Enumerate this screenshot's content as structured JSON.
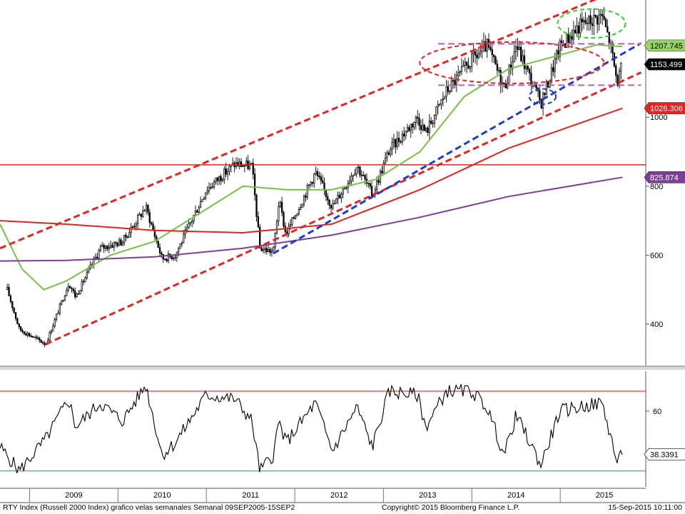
{
  "chart_data": [
    {
      "type": "candlestick",
      "frequency": "weekly",
      "ylim": [
        280,
        1340
      ],
      "x_range": [
        "2008-09-01",
        "2015-12-20"
      ],
      "y_ticks": [
        400,
        600,
        800,
        1000
      ],
      "y_tick_labels": [
        "400",
        "600",
        "800",
        "1000"
      ],
      "year_labels": [
        "2009",
        "2010",
        "2011",
        "2012",
        "2013",
        "2014",
        "2015"
      ],
      "price_path": [
        [
          "2008-10-01",
          500
        ],
        [
          "2008-11-20",
          385
        ],
        [
          "2009-03-09",
          342
        ],
        [
          "2009-06-12",
          520
        ],
        [
          "2009-07-10",
          480
        ],
        [
          "2009-10-20",
          620
        ],
        [
          "2010-01-20",
          640
        ],
        [
          "2010-04-26",
          740
        ],
        [
          "2010-07-02",
          590
        ],
        [
          "2010-08-25",
          600
        ],
        [
          "2010-12-31",
          790
        ],
        [
          "2011-04-29",
          865
        ],
        [
          "2011-07-08",
          858
        ],
        [
          "2011-08-10",
          620
        ],
        [
          "2011-10-04",
          610
        ],
        [
          "2011-10-28",
          760
        ],
        [
          "2011-11-25",
          660
        ],
        [
          "2012-03-26",
          840
        ],
        [
          "2012-06-04",
          740
        ],
        [
          "2012-09-14",
          860
        ],
        [
          "2012-11-16",
          775
        ],
        [
          "2013-01-25",
          905
        ],
        [
          "2013-05-22",
          1000
        ],
        [
          "2013-06-24",
          955
        ],
        [
          "2013-09-18",
          1075
        ],
        [
          "2013-12-31",
          1165
        ],
        [
          "2014-03-04",
          1208
        ],
        [
          "2014-05-15",
          1085
        ],
        [
          "2014-07-03",
          1210
        ],
        [
          "2014-10-13",
          1040
        ],
        [
          "2014-12-31",
          1205
        ],
        [
          "2015-03-20",
          1265
        ],
        [
          "2015-06-23",
          1296
        ],
        [
          "2015-07-27",
          1210
        ],
        [
          "2015-08-24",
          1100
        ],
        [
          "2015-09-15",
          1153
        ]
      ],
      "moving_averages": [
        {
          "color": "#7ac143",
          "points": [
            [
              "2008-09-01",
              690
            ],
            [
              "2008-12-01",
              560
            ],
            [
              "2009-03-01",
              500
            ],
            [
              "2009-06-01",
              525
            ],
            [
              "2009-12-01",
              600
            ],
            [
              "2010-06-01",
              640
            ],
            [
              "2010-12-01",
              720
            ],
            [
              "2011-06-01",
              800
            ],
            [
              "2011-12-01",
              790
            ],
            [
              "2012-06-01",
              790
            ],
            [
              "2012-12-01",
              820
            ],
            [
              "2013-06-01",
              900
            ],
            [
              "2013-12-01",
              1060
            ],
            [
              "2014-06-01",
              1140
            ],
            [
              "2014-12-01",
              1175
            ],
            [
              "2015-06-01",
              1210
            ],
            [
              "2015-09-15",
              1205
            ]
          ]
        },
        {
          "color": "#e52421",
          "points": [
            [
              "2008-09-01",
              700
            ],
            [
              "2009-06-01",
              690
            ],
            [
              "2010-06-01",
              672
            ],
            [
              "2011-06-01",
              665
            ],
            [
              "2012-06-01",
              690
            ],
            [
              "2013-06-01",
              790
            ],
            [
              "2014-06-01",
              910
            ],
            [
              "2015-06-01",
              1000
            ],
            [
              "2015-09-15",
              1026
            ]
          ]
        },
        {
          "color": "#7b3f98",
          "points": [
            [
              "2008-09-01",
              583
            ],
            [
              "2009-06-01",
              585
            ],
            [
              "2010-06-01",
              595
            ],
            [
              "2011-06-01",
              620
            ],
            [
              "2012-06-01",
              658
            ],
            [
              "2013-06-01",
              710
            ],
            [
              "2014-06-01",
              770
            ],
            [
              "2015-09-15",
              826
            ]
          ]
        }
      ],
      "reference_lines": [
        {
          "y": 862,
          "color": "#e52421",
          "style": "solid"
        }
      ],
      "annotations": [
        {
          "kind": "trend",
          "color": "#e52421",
          "dashed": true,
          "from": [
            "2008-09-01",
            620
          ],
          "to": [
            "2015-12-10",
            1400
          ]
        },
        {
          "kind": "trend",
          "color": "#e52421",
          "dashed": true,
          "from": [
            "2009-03-09",
            342
          ],
          "to": [
            "2015-12-01",
            1130
          ]
        },
        {
          "kind": "trend",
          "color": "#1d3bd1",
          "dashed": true,
          "from": [
            "2011-10-04",
            605
          ],
          "to": [
            "2015-12-01",
            1215
          ]
        },
        {
          "kind": "level",
          "color": "#b06fc4",
          "dashed": true,
          "from": [
            "2013-08-15",
            1213
          ],
          "to": [
            "2015-12-01",
            1213
          ]
        },
        {
          "kind": "level",
          "color": "#b06fc4",
          "dashed": true,
          "from": [
            "2013-08-15",
            1093
          ],
          "to": [
            "2015-12-01",
            1093
          ]
        },
        {
          "kind": "ellipse",
          "color": "#e52421",
          "dashed": true,
          "center": [
            "2014-06-15",
            1158
          ],
          "rx_days": 380,
          "ry_value": 60
        },
        {
          "kind": "ellipse",
          "color": "#1d3bd1",
          "dashed": true,
          "center": [
            "2014-10-20",
            1060
          ],
          "rx_days": 55,
          "ry_value": 22
        },
        {
          "kind": "ellipse",
          "color": "#33cc33",
          "dashed": true,
          "center": [
            "2015-05-10",
            1272
          ],
          "rx_days": 140,
          "ry_value": 42
        }
      ],
      "last_value_tags": [
        {
          "label": "1207.745",
          "value": 1207.745,
          "bg": "#9ad26a",
          "fg": "#000000"
        },
        {
          "label": "1153.499",
          "value": 1153.499,
          "bg": "#000000",
          "fg": "#ffffff"
        },
        {
          "label": "1026.306",
          "value": 1026.306,
          "bg": "#e52421",
          "fg": "#ffffff"
        },
        {
          "label": "825.874",
          "value": 825.874,
          "bg": "#7b3f98",
          "fg": "#ffffff"
        }
      ]
    },
    {
      "type": "line",
      "ylim": [
        22,
        80
      ],
      "y_ticks": [
        60
      ],
      "y_tick_labels": [
        "60"
      ],
      "reference_lines": [
        {
          "y": 70,
          "color": "#e52421"
        },
        {
          "y": 30,
          "color": "#33cc33"
        }
      ],
      "series_color": "#000000",
      "path": [
        [
          "2008-09-01",
          42
        ],
        [
          "2008-11-20",
          30
        ],
        [
          "2009-03-09",
          46
        ],
        [
          "2009-06-12",
          66
        ],
        [
          "2009-07-10",
          52
        ],
        [
          "2009-10-20",
          64
        ],
        [
          "2010-01-20",
          55
        ],
        [
          "2010-04-26",
          73
        ],
        [
          "2010-07-02",
          38
        ],
        [
          "2010-08-25",
          44
        ],
        [
          "2010-12-31",
          68
        ],
        [
          "2011-04-29",
          66
        ],
        [
          "2011-07-08",
          55
        ],
        [
          "2011-08-10",
          30
        ],
        [
          "2011-10-04",
          38
        ],
        [
          "2011-10-28",
          55
        ],
        [
          "2011-11-25",
          44
        ],
        [
          "2012-03-26",
          64
        ],
        [
          "2012-06-04",
          40
        ],
        [
          "2012-09-14",
          62
        ],
        [
          "2012-11-16",
          42
        ],
        [
          "2013-01-25",
          70
        ],
        [
          "2013-05-22",
          68
        ],
        [
          "2013-06-24",
          52
        ],
        [
          "2013-09-18",
          70
        ],
        [
          "2013-12-31",
          70
        ],
        [
          "2014-03-04",
          62
        ],
        [
          "2014-05-15",
          38
        ],
        [
          "2014-07-03",
          58
        ],
        [
          "2014-10-13",
          33
        ],
        [
          "2014-12-31",
          60
        ],
        [
          "2015-03-20",
          62
        ],
        [
          "2015-06-23",
          64
        ],
        [
          "2015-07-27",
          48
        ],
        [
          "2015-08-24",
          34
        ],
        [
          "2015-09-15",
          38.3391
        ]
      ],
      "last_value_tag": {
        "label": "38.3391",
        "value": 38.3391,
        "bg": "#ffffff",
        "fg": "#000000"
      }
    }
  ],
  "footer": {
    "left": "RTY Index (Russell 2000 Index) grafico velas semanales  Semanal 09SEP2005-15SEP2",
    "center": "Copyright© 2015 Bloomberg Finance L.P.",
    "right": "15-Sep-2015 10:11:00"
  },
  "colors": {
    "background": "#ffffff",
    "axis": "#555555",
    "candle": "#000000"
  }
}
